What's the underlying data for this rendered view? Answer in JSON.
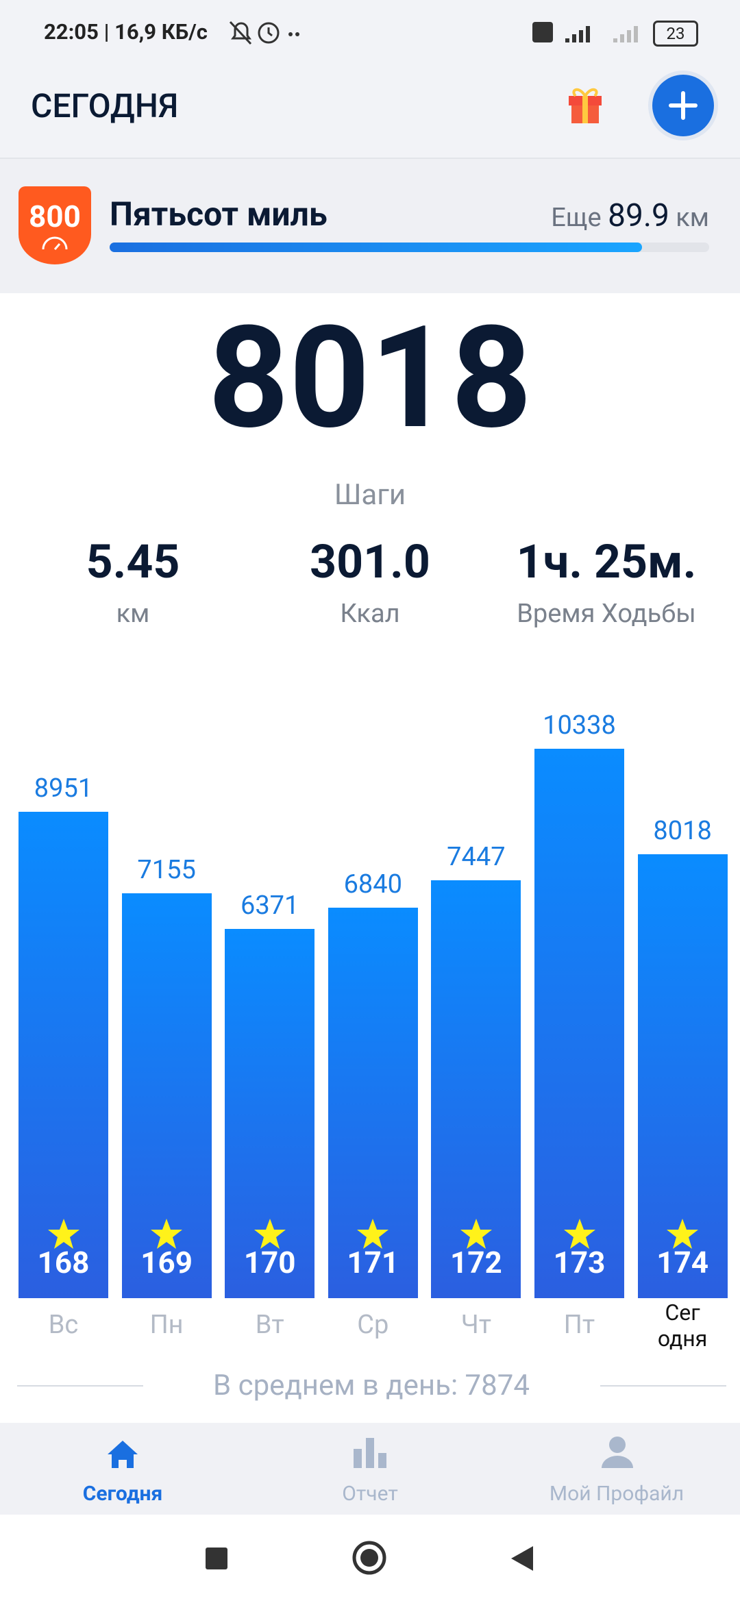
{
  "status_bar": {
    "time_speed": "22:05 | 16,9 КБ/с",
    "battery": "23"
  },
  "header": {
    "title": "СЕГОДНЯ"
  },
  "achievement": {
    "badge": 800,
    "name": "Пятьсот миль",
    "remaining_label": "Еще",
    "remaining": 89.9,
    "unit": "км"
  },
  "summary": {
    "steps": 8018,
    "steps_label": "Шаги",
    "stats": [
      {
        "value": "5.45",
        "label": "км"
      },
      {
        "value": "301.0",
        "label": "Ккал"
      },
      {
        "value": "1ч. 25м.",
        "label": "Время Ходьбы"
      }
    ]
  },
  "chart_data": {
    "type": "bar",
    "categories": [
      "Вс",
      "Пн",
      "Вт",
      "Ср",
      "Чт",
      "Пт",
      "Сег\nодня"
    ],
    "values": [
      8951,
      7155,
      6371,
      6840,
      7447,
      10338,
      8018
    ],
    "badges": [
      168,
      169,
      170,
      171,
      172,
      173,
      174
    ],
    "color": "#0a8cff"
  },
  "average": {
    "label": "В среднем в день:",
    "value": 7874
  },
  "nav": {
    "items": [
      "Сегодня",
      "Отчет",
      "Мой Профайл"
    ]
  }
}
